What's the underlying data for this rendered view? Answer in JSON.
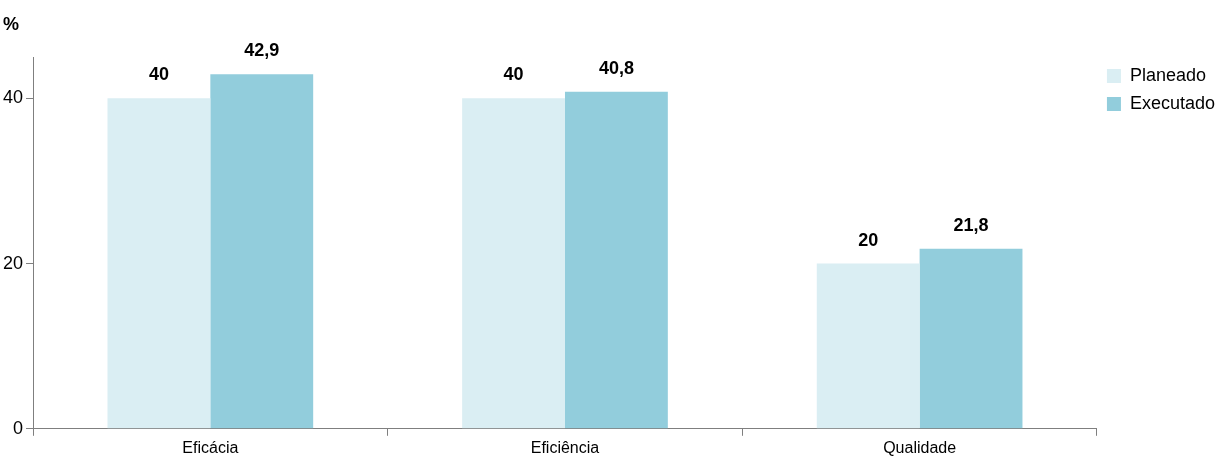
{
  "chart_data": {
    "type": "bar",
    "ylabel": "%",
    "categories": [
      "Eficácia",
      "Eficiência",
      "Qualidade"
    ],
    "series": [
      {
        "name": "Planeado",
        "color": "#daeef3",
        "values": [
          40,
          40,
          20
        ],
        "value_labels": [
          "40",
          "40",
          "20"
        ]
      },
      {
        "name": "Executado",
        "color": "#92cddc",
        "values": [
          42.9,
          40.8,
          21.8
        ],
        "value_labels": [
          "42,9",
          "40,8",
          "21,8"
        ]
      }
    ],
    "ylim": [
      0,
      45
    ],
    "yticks": [
      0,
      20,
      40
    ],
    "grid": false,
    "legend": "top right"
  }
}
